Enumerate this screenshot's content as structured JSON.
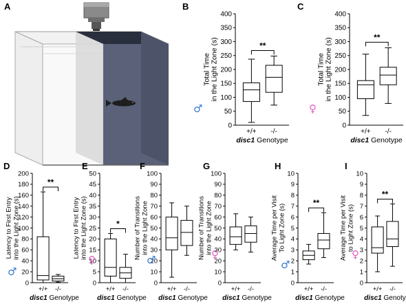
{
  "panels": [
    {
      "letter": "A"
    },
    {
      "letter": "B",
      "ylabel": "Total Time\nin the Light Zone (s)",
      "sex_symbol": "♂",
      "sex_color": "#3a7bd5",
      "yticks": [
        0,
        50,
        100,
        150,
        200,
        250,
        300,
        350,
        400
      ],
      "sig": "**"
    },
    {
      "letter": "C",
      "ylabel": "Total Time\nin the Light Zone (s)",
      "sex_symbol": "♀",
      "sex_color": "#e25fc8",
      "yticks": [
        0,
        50,
        100,
        150,
        200,
        250,
        300,
        350,
        400
      ],
      "sig": "**"
    },
    {
      "letter": "D",
      "ylabel": "Latency to First Entry\ninto the Light Zone (s)",
      "sex_symbol": "♂",
      "sex_color": "#3a7bd5",
      "yticks": [
        0,
        20,
        40,
        60,
        80,
        100,
        120,
        140,
        160,
        180,
        200
      ],
      "sig": "**"
    },
    {
      "letter": "E",
      "ylabel": "Latency to First Entry\ninto the Light Zone (s)",
      "sex_symbol": "♀",
      "sex_color": "#e25fc8",
      "yticks": [
        0,
        5,
        10,
        15,
        20,
        25,
        30,
        35,
        40,
        45,
        50
      ],
      "sig": "*"
    },
    {
      "letter": "F",
      "ylabel": "Number of Transitions\ninto the Light Zone",
      "sex_symbol": "♂",
      "sex_color": "#3a7bd5",
      "yticks": [
        0,
        10,
        20,
        30,
        40,
        50,
        60,
        70,
        80,
        90,
        100
      ],
      "sig": ""
    },
    {
      "letter": "G",
      "ylabel": "Number of Transitions\ninto the Light Zone",
      "sex_symbol": "♀",
      "sex_color": "#e25fc8",
      "yticks": [
        0,
        10,
        20,
        30,
        40,
        50,
        60,
        70,
        80,
        90,
        100
      ],
      "sig": ""
    },
    {
      "letter": "H",
      "ylabel": "Average Time per Visit\nTo Light Zone (s)",
      "sex_symbol": "♂",
      "sex_color": "#3a7bd5",
      "yticks": [
        0,
        1,
        2,
        3,
        4,
        5,
        6,
        7,
        8,
        9,
        10
      ],
      "sig": "**"
    },
    {
      "letter": "I",
      "ylabel": "Average Time per Visit\nto Light Zone (s)",
      "sex_symbol": "♀",
      "sex_color": "#e25fc8",
      "yticks": [
        0,
        1,
        2,
        3,
        4,
        5,
        6,
        7,
        8,
        9,
        10
      ],
      "sig": "**"
    }
  ],
  "categories": [
    "+/+",
    "-/-"
  ],
  "xlabel_italic": "disc1",
  "xlabel_rest": " Genotype",
  "chart_data": [
    {
      "panel": "B",
      "type": "box",
      "categories": [
        "+/+",
        "-/-"
      ],
      "ylim": [
        0,
        400
      ],
      "series": [
        {
          "category": "+/+",
          "whislo": 10,
          "q1": 85,
          "med": 127,
          "q3": 152,
          "whishi": 237
        },
        {
          "category": "-/-",
          "whislo": 72,
          "q1": 118,
          "med": 172,
          "q3": 215,
          "whishi": 248
        }
      ],
      "significance": "**"
    },
    {
      "panel": "C",
      "type": "box",
      "categories": [
        "+/+",
        "-/-"
      ],
      "ylim": [
        0,
        400
      ],
      "series": [
        {
          "category": "+/+",
          "whislo": 35,
          "q1": 95,
          "med": 145,
          "q3": 160,
          "whishi": 255
        },
        {
          "category": "-/-",
          "whislo": 78,
          "q1": 145,
          "med": 180,
          "q3": 208,
          "whishi": 278
        }
      ],
      "significance": "**"
    },
    {
      "panel": "D",
      "type": "box",
      "categories": [
        "+/+",
        "-/-"
      ],
      "ylim": [
        0,
        200
      ],
      "series": [
        {
          "category": "+/+",
          "whislo": 0,
          "q1": 5,
          "med": 13,
          "q3": 84,
          "whishi": 166
        },
        {
          "category": "-/-",
          "whislo": 1,
          "q1": 3,
          "med": 7,
          "q3": 12,
          "whishi": 15
        }
      ],
      "significance": "**"
    },
    {
      "panel": "E",
      "type": "box",
      "categories": [
        "+/+",
        "-/-"
      ],
      "ylim": [
        0,
        50
      ],
      "series": [
        {
          "category": "+/+",
          "whislo": 0,
          "q1": 3,
          "med": 7,
          "q3": 20,
          "whishi": 22.5
        },
        {
          "category": "-/-",
          "whislo": 0,
          "q1": 2,
          "med": 4.5,
          "q3": 7,
          "whishi": 13
        }
      ],
      "significance": "*"
    },
    {
      "panel": "F",
      "type": "box",
      "categories": [
        "+/+",
        "-/-"
      ],
      "ylim": [
        0,
        100
      ],
      "series": [
        {
          "category": "+/+",
          "whislo": 5,
          "q1": 30,
          "med": 41,
          "q3": 60,
          "whishi": 73
        },
        {
          "category": "-/-",
          "whislo": 25,
          "q1": 34,
          "med": 46,
          "q3": 57,
          "whishi": 70
        }
      ],
      "significance": ""
    },
    {
      "panel": "G",
      "type": "box",
      "categories": [
        "+/+",
        "-/-"
      ],
      "ylim": [
        0,
        100
      ],
      "series": [
        {
          "category": "+/+",
          "whislo": 30,
          "q1": 35,
          "med": 42,
          "q3": 51,
          "whishi": 63
        },
        {
          "category": "-/-",
          "whislo": 28,
          "q1": 37,
          "med": 45,
          "q3": 52,
          "whishi": 60
        }
      ],
      "significance": ""
    },
    {
      "panel": "H",
      "type": "box",
      "categories": [
        "+/+",
        "-/-"
      ],
      "ylim": [
        0,
        10
      ],
      "series": [
        {
          "category": "+/+",
          "whislo": 1.7,
          "q1": 2.1,
          "med": 2.5,
          "q3": 2.9,
          "whishi": 3.5
        },
        {
          "category": "-/-",
          "whislo": 2.3,
          "q1": 3.1,
          "med": 3.9,
          "q3": 4.5,
          "whishi": 6.4
        }
      ],
      "significance": "**"
    },
    {
      "panel": "I",
      "type": "box",
      "categories": [
        "+/+",
        "-/-"
      ],
      "ylim": [
        0,
        10
      ],
      "series": [
        {
          "category": "+/+",
          "whislo": 1.0,
          "q1": 2.7,
          "med": 3.2,
          "q3": 5.1,
          "whishi": 6.1
        },
        {
          "category": "-/-",
          "whislo": 1.5,
          "q1": 3.3,
          "med": 4.0,
          "q3": 5.6,
          "whishi": 7.2
        }
      ],
      "significance": "**"
    }
  ]
}
